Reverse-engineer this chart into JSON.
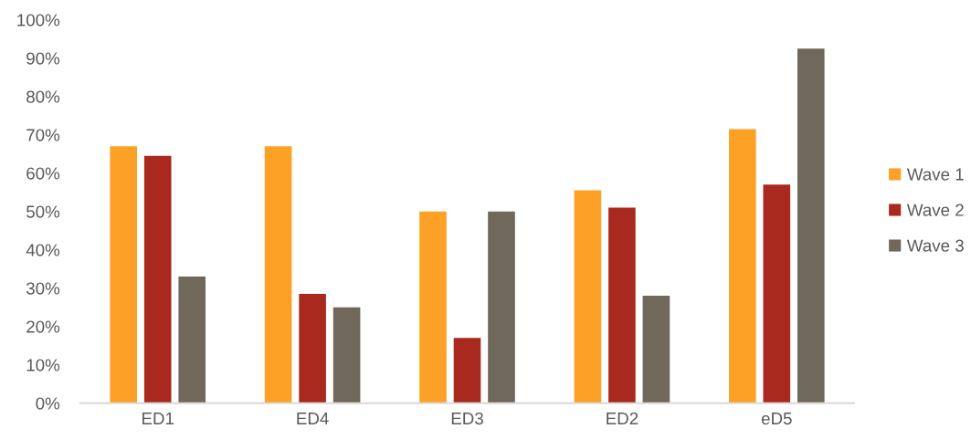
{
  "chart_data": {
    "type": "bar",
    "categories": [
      "ED1",
      "ED4",
      "ED3",
      "ED2",
      "eD5"
    ],
    "series": [
      {
        "name": "Wave 1",
        "color": "#fca026",
        "values": [
          67,
          67,
          50,
          55.5,
          71.5
        ]
      },
      {
        "name": "Wave 2",
        "color": "#a9291e",
        "values": [
          64.5,
          28.5,
          17,
          51,
          57
        ]
      },
      {
        "name": "Wave 3",
        "color": "#70685a",
        "values": [
          33,
          25,
          50,
          28,
          92.5
        ]
      }
    ],
    "ylim": [
      0,
      100
    ],
    "yticks": [
      {
        "value": 0,
        "label": "0%"
      },
      {
        "value": 10,
        "label": "10%"
      },
      {
        "value": 20,
        "label": "20%"
      },
      {
        "value": 30,
        "label": "30%"
      },
      {
        "value": 40,
        "label": "40%"
      },
      {
        "value": 50,
        "label": "50%"
      },
      {
        "value": 60,
        "label": "60%"
      },
      {
        "value": 70,
        "label": "70%"
      },
      {
        "value": 80,
        "label": "80%"
      },
      {
        "value": 90,
        "label": "90%"
      },
      {
        "value": 100,
        "label": "100%"
      }
    ],
    "grid": false,
    "legend": "right"
  }
}
